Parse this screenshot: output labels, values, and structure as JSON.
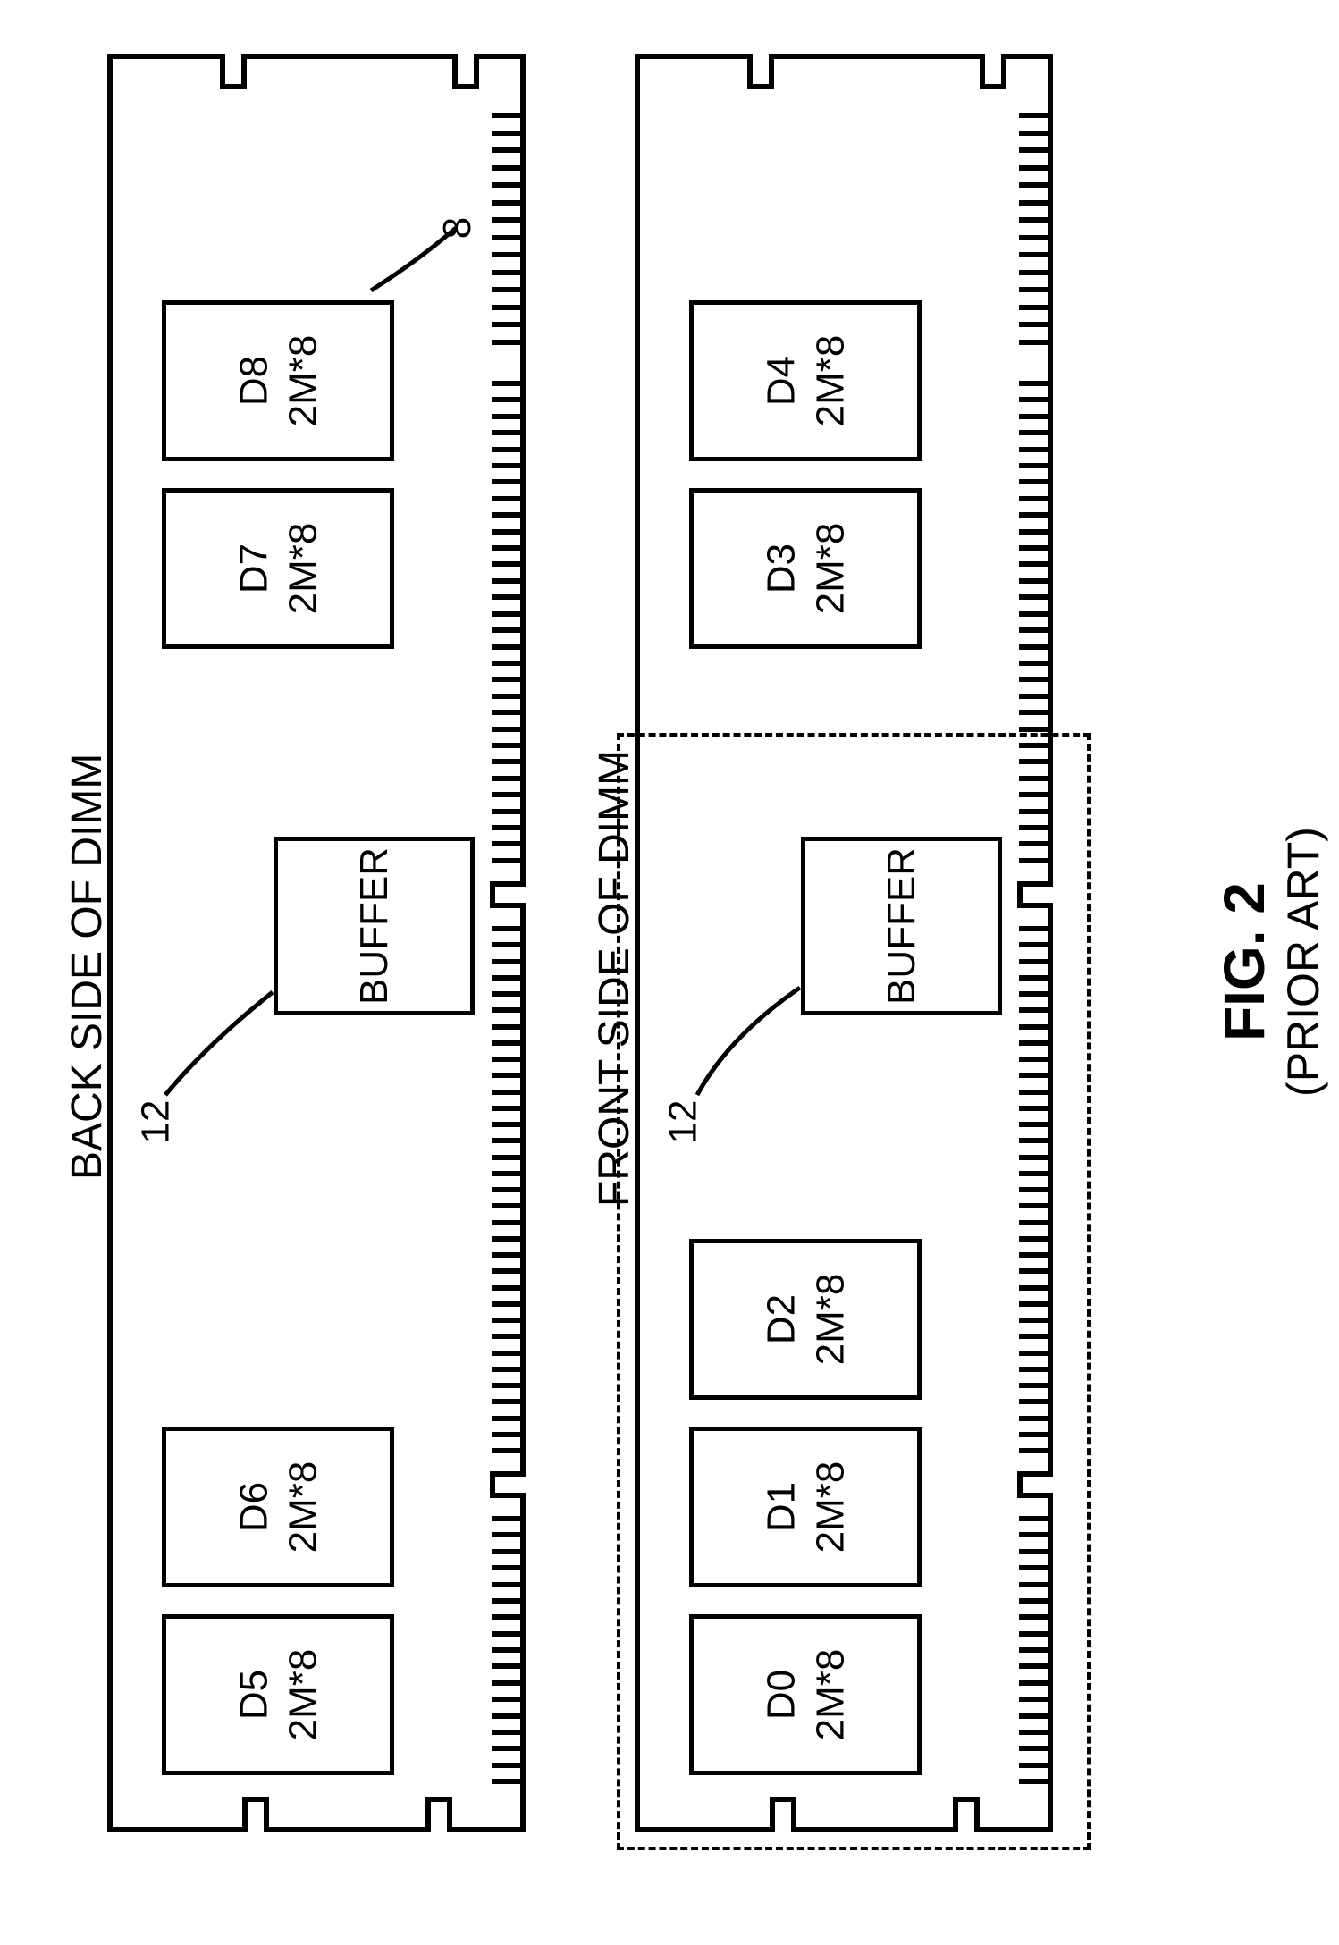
{
  "figure": {
    "caption_main": "FIG. 2",
    "caption_sub": "(PRIOR ART)"
  },
  "back": {
    "label": "BACK SIDE OF DIMM",
    "chips": [
      {
        "name": "D5",
        "spec": "2M*8"
      },
      {
        "name": "D6",
        "spec": "2M*8"
      },
      {
        "name": "D7",
        "spec": "2M*8"
      },
      {
        "name": "D8",
        "spec": "2M*8"
      }
    ],
    "buffer": "BUFFER",
    "ref_buffer": "12",
    "ref_chip": "8"
  },
  "front": {
    "label": "FRONT SIDE OF DIMM",
    "chips": [
      {
        "name": "D0",
        "spec": "2M*8"
      },
      {
        "name": "D1",
        "spec": "2M*8"
      },
      {
        "name": "D2",
        "spec": "2M*8"
      },
      {
        "name": "D3",
        "spec": "2M*8"
      },
      {
        "name": "D4",
        "spec": "2M*8"
      }
    ],
    "buffer": "BUFFER",
    "ref_buffer": "12"
  },
  "style": {
    "stroke": "#000000",
    "bg": "#ffffff",
    "line_width": 6,
    "chip_line_width": 5,
    "font_size_label": 48,
    "font_size_chip": 44,
    "font_size_fig": 64,
    "font_size_sub": 50
  }
}
